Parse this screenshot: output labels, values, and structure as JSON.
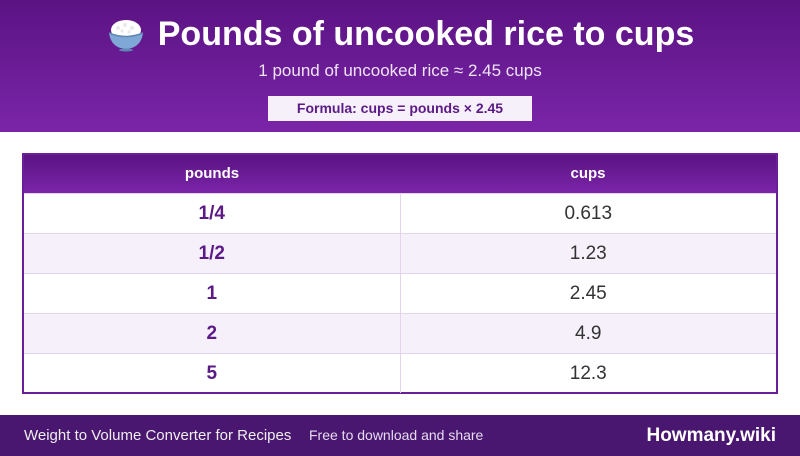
{
  "header": {
    "icon": "rice-bowl-icon",
    "title": "Pounds of uncooked rice to cups",
    "subtitle": "1 pound of uncooked rice ≈ 2.45 cups",
    "formula": "Formula: cups = pounds × 2.45"
  },
  "table": {
    "columns": [
      "pounds",
      "cups"
    ],
    "rows": [
      {
        "pounds": "1/4",
        "cups": "0.613"
      },
      {
        "pounds": "1/2",
        "cups": "1.23"
      },
      {
        "pounds": "1",
        "cups": "2.45"
      },
      {
        "pounds": "2",
        "cups": "4.9"
      },
      {
        "pounds": "5",
        "cups": "12.3"
      }
    ]
  },
  "footer": {
    "left": "Weight to Volume Converter for Recipes",
    "middle": "Free to download and share",
    "brand": "Howmany.wiki"
  },
  "colors": {
    "header_start": "#5b1383",
    "header_end": "#7a25a8",
    "accent_text": "#5b1a86",
    "footer_bg": "#4a1770"
  }
}
